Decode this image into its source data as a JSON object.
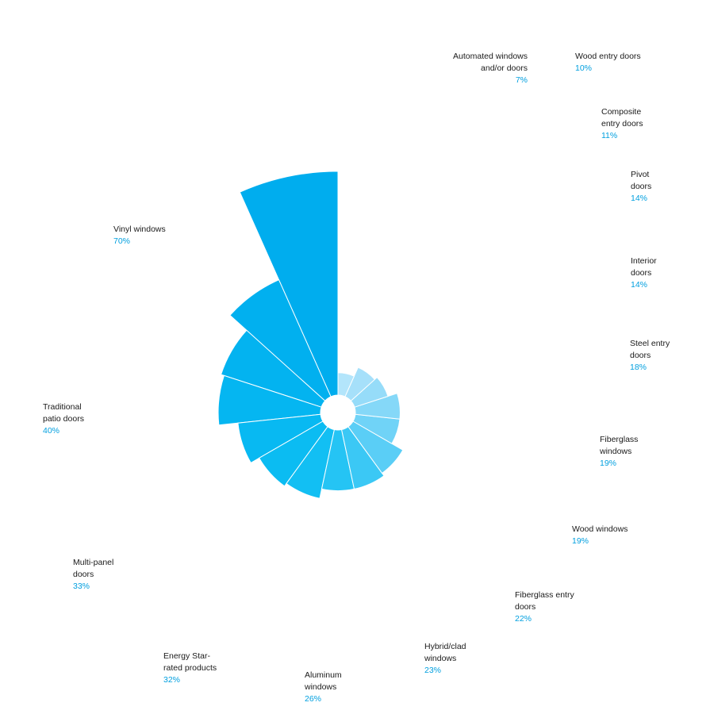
{
  "chart_data": {
    "type": "pie",
    "subtype": "polar-area-spiral",
    "series": [
      {
        "label": "Vinyl windows",
        "value": 70,
        "display": "70%",
        "color": "#00adee"
      },
      {
        "label": "Traditional patio doors",
        "value": 40,
        "display": "40%",
        "color": "#01b0ef"
      },
      {
        "label": "Multi-panel doors",
        "value": 33,
        "display": "33%",
        "color": "#03b3f0"
      },
      {
        "label": "Energy Star-rated products",
        "value": 32,
        "display": "32%",
        "color": "#05b6f1"
      },
      {
        "label": "Aluminum windows",
        "value": 26,
        "display": "26%",
        "color": "#08b9f2"
      },
      {
        "label": "Hybrid/clad windows",
        "value": 23,
        "display": "23%",
        "color": "#0bbcf2"
      },
      {
        "label": "Fiberglass entry doors",
        "value": 22,
        "display": "22%",
        "color": "#12bff3"
      },
      {
        "label": "Wood windows",
        "value": 19,
        "display": "19%",
        "color": "#25c4f4"
      },
      {
        "label": "Fiberglass windows",
        "value": 19,
        "display": "19%",
        "color": "#3bc8f5"
      },
      {
        "label": "Steel entry doors",
        "value": 18,
        "display": "18%",
        "color": "#5acef6"
      },
      {
        "label": "Interior doors",
        "value": 14,
        "display": "14%",
        "color": "#70d3f7"
      },
      {
        "label": "Pivot doors",
        "value": 14,
        "display": "14%",
        "color": "#85d8f8"
      },
      {
        "label": "Composite entry doors",
        "value": 11,
        "display": "11%",
        "color": "#96dcf9"
      },
      {
        "label": "Wood entry doors",
        "value": 10,
        "display": "10%",
        "color": "#a6e0fa"
      },
      {
        "label": "Automated windows and/or doors",
        "value": 7,
        "display": "7%",
        "color": "#b3e5fb"
      }
    ]
  },
  "labels": [
    {
      "name": "Vinyl windows",
      "pct": "70%"
    },
    {
      "name": "Traditional patio doors",
      "pct": "40%"
    },
    {
      "name": "Multi-panel doors",
      "pct": "33%"
    },
    {
      "name": "Energy Star-rated products",
      "pct": "32%"
    },
    {
      "name": "Aluminum windows",
      "pct": "26%"
    },
    {
      "name": "Hybrid/clad windows",
      "pct": "23%"
    },
    {
      "name": "Fiberglass entry doors",
      "pct": "22%"
    },
    {
      "name": "Wood windows",
      "pct": "19%"
    },
    {
      "name": "Fiberglass windows",
      "pct": "19%"
    },
    {
      "name": "Steel entry doors",
      "pct": "18%"
    },
    {
      "name": "Interior doors",
      "pct": "14%"
    },
    {
      "name": "Pivot doors",
      "pct": "14%"
    },
    {
      "name": "Composite entry doors",
      "pct": "11%"
    },
    {
      "name": "Wood entry doors",
      "pct": "10%"
    },
    {
      "name": "Automated windows and/or doors",
      "pct": "7%"
    }
  ]
}
